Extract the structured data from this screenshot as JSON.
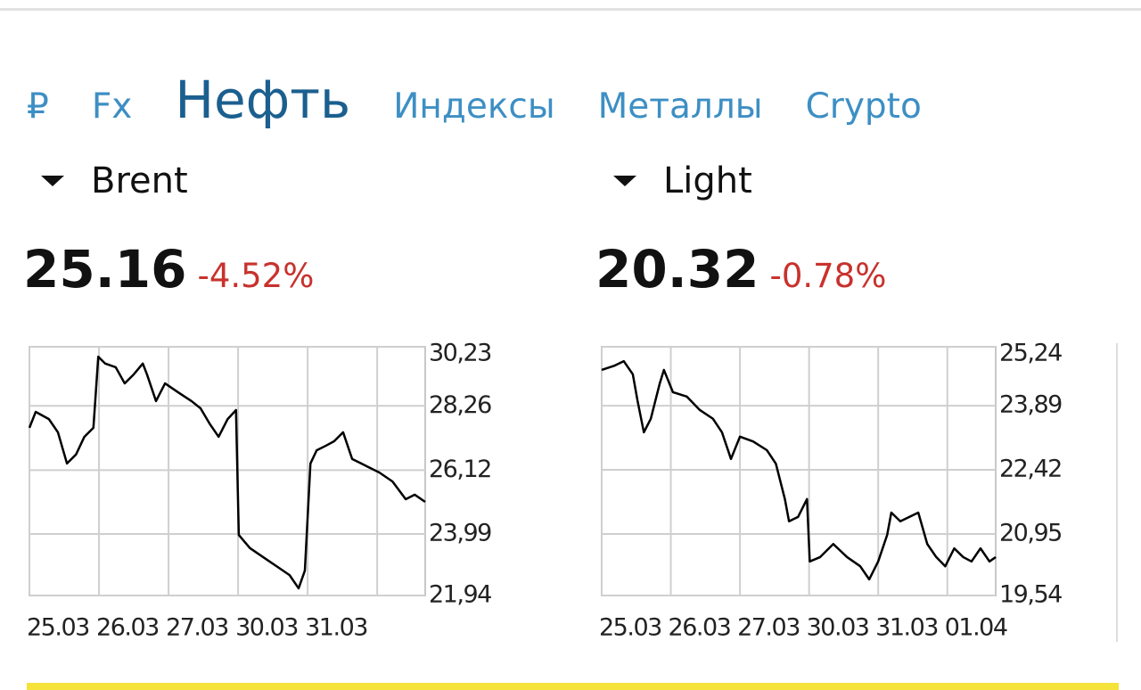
{
  "tabs": [
    "₽",
    "Fx",
    "Нефть",
    "Индексы",
    "Металлы",
    "Crypto"
  ],
  "quotes": [
    {
      "name": "Brent",
      "price": "25.16",
      "change": "-4.52%"
    },
    {
      "name": "Light",
      "price": "20.32",
      "change": "-0.78%"
    }
  ],
  "chart_data": [
    {
      "type": "line",
      "color": "#000000",
      "grid": true,
      "xlim": [
        0,
        5.69
      ],
      "xticks": [
        {
          "value": 0,
          "label": "25.03"
        },
        {
          "value": 1,
          "label": "26.03"
        },
        {
          "value": 2,
          "label": "27.03"
        },
        {
          "value": 3,
          "label": "30.03"
        },
        {
          "value": 4,
          "label": "31.03"
        },
        {
          "value": 5,
          "label": null
        }
      ],
      "ylim": [
        21.94,
        30.23
      ],
      "yticks": [
        {
          "value": 21.94,
          "label": "21,94"
        },
        {
          "value": 23.99,
          "label": "23,99"
        },
        {
          "value": 26.12,
          "label": "26,12"
        },
        {
          "value": 28.26,
          "label": "28,26"
        },
        {
          "value": 30.23,
          "label": "30,23"
        }
      ],
      "series": [
        {
          "x": [
            0,
            0.09,
            0.28,
            0.41,
            0.54,
            0.67,
            0.79,
            0.92,
            0.99,
            1.09,
            1.24,
            1.37,
            1.5,
            1.63,
            1.69,
            1.82,
            1.95,
            2.14,
            2.33,
            2.46,
            2.59,
            2.72,
            2.85,
            2.97,
            3.01,
            3.17,
            3.36,
            3.55,
            3.74,
            3.87,
            3.96,
            4.04,
            4.13,
            4.26,
            4.38,
            4.51,
            4.64,
            4.77,
            4.9,
            5.03,
            5.22,
            5.41,
            5.54,
            5.69
          ],
          "values": [
            27.53,
            28.06,
            27.82,
            27.38,
            26.34,
            26.64,
            27.23,
            27.53,
            29.9,
            29.67,
            29.55,
            29.01,
            29.31,
            29.67,
            29.31,
            28.42,
            29.01,
            28.71,
            28.42,
            28.18,
            27.67,
            27.23,
            27.82,
            28.12,
            23.96,
            23.52,
            23.22,
            22.92,
            22.62,
            22.18,
            22.77,
            26.34,
            26.78,
            26.93,
            27.08,
            27.38,
            26.49,
            26.34,
            26.19,
            26.04,
            25.74,
            25.15,
            25.3,
            25.06
          ]
        }
      ]
    },
    {
      "type": "line",
      "color": "#000000",
      "grid": true,
      "xlim": [
        0,
        5.7
      ],
      "xticks": [
        {
          "value": 0,
          "label": "25.03"
        },
        {
          "value": 1,
          "label": "26.03"
        },
        {
          "value": 2,
          "label": "27.03"
        },
        {
          "value": 3,
          "label": "30.03"
        },
        {
          "value": 4,
          "label": "31.03"
        },
        {
          "value": 5,
          "label": "01.04"
        }
      ],
      "ylim": [
        19.54,
        25.24
      ],
      "yticks": [
        {
          "value": 19.54,
          "label": "19,54"
        },
        {
          "value": 20.95,
          "label": "20,95"
        },
        {
          "value": 22.42,
          "label": "22,42"
        },
        {
          "value": 23.89,
          "label": "23,89"
        },
        {
          "value": 25.24,
          "label": "25,24"
        }
      ],
      "series": [
        {
          "x": [
            0,
            0.19,
            0.32,
            0.45,
            0.52,
            0.61,
            0.71,
            0.84,
            0.9,
            1.03,
            1.23,
            1.42,
            1.61,
            1.74,
            1.87,
            2.0,
            2.19,
            2.39,
            2.52,
            2.65,
            2.71,
            2.84,
            2.97,
            3.01,
            3.16,
            3.35,
            3.55,
            3.74,
            3.87,
            4.0,
            4.13,
            4.19,
            4.32,
            4.45,
            4.58,
            4.71,
            4.84,
            4.97,
            5.1,
            5.23,
            5.35,
            5.48,
            5.61,
            5.7
          ],
          "values": [
            24.71,
            24.81,
            24.91,
            24.61,
            23.99,
            23.28,
            23.59,
            24.4,
            24.71,
            24.2,
            24.1,
            23.79,
            23.59,
            23.28,
            22.67,
            23.18,
            23.07,
            22.87,
            22.56,
            21.75,
            21.24,
            21.34,
            21.75,
            20.32,
            20.42,
            20.72,
            20.42,
            20.21,
            19.91,
            20.32,
            20.93,
            21.44,
            21.24,
            21.34,
            21.44,
            20.72,
            20.42,
            20.21,
            20.62,
            20.42,
            20.32,
            20.62,
            20.32,
            20.42
          ]
        }
      ]
    }
  ]
}
